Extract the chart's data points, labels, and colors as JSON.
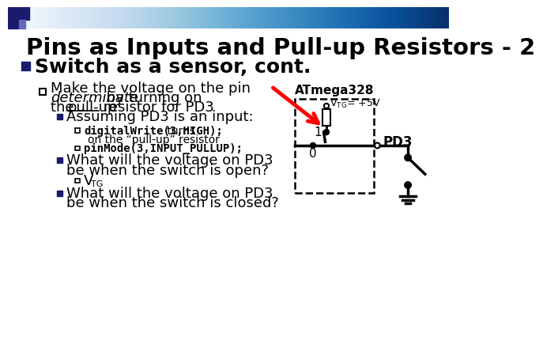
{
  "title": "Pins as Inputs and Pull-up Resistors - 2",
  "bg_color": "#ffffff",
  "bullet1": "Switch as a sensor, cont.",
  "circuit_label": "ATmega328",
  "pd3_label": "PD3"
}
